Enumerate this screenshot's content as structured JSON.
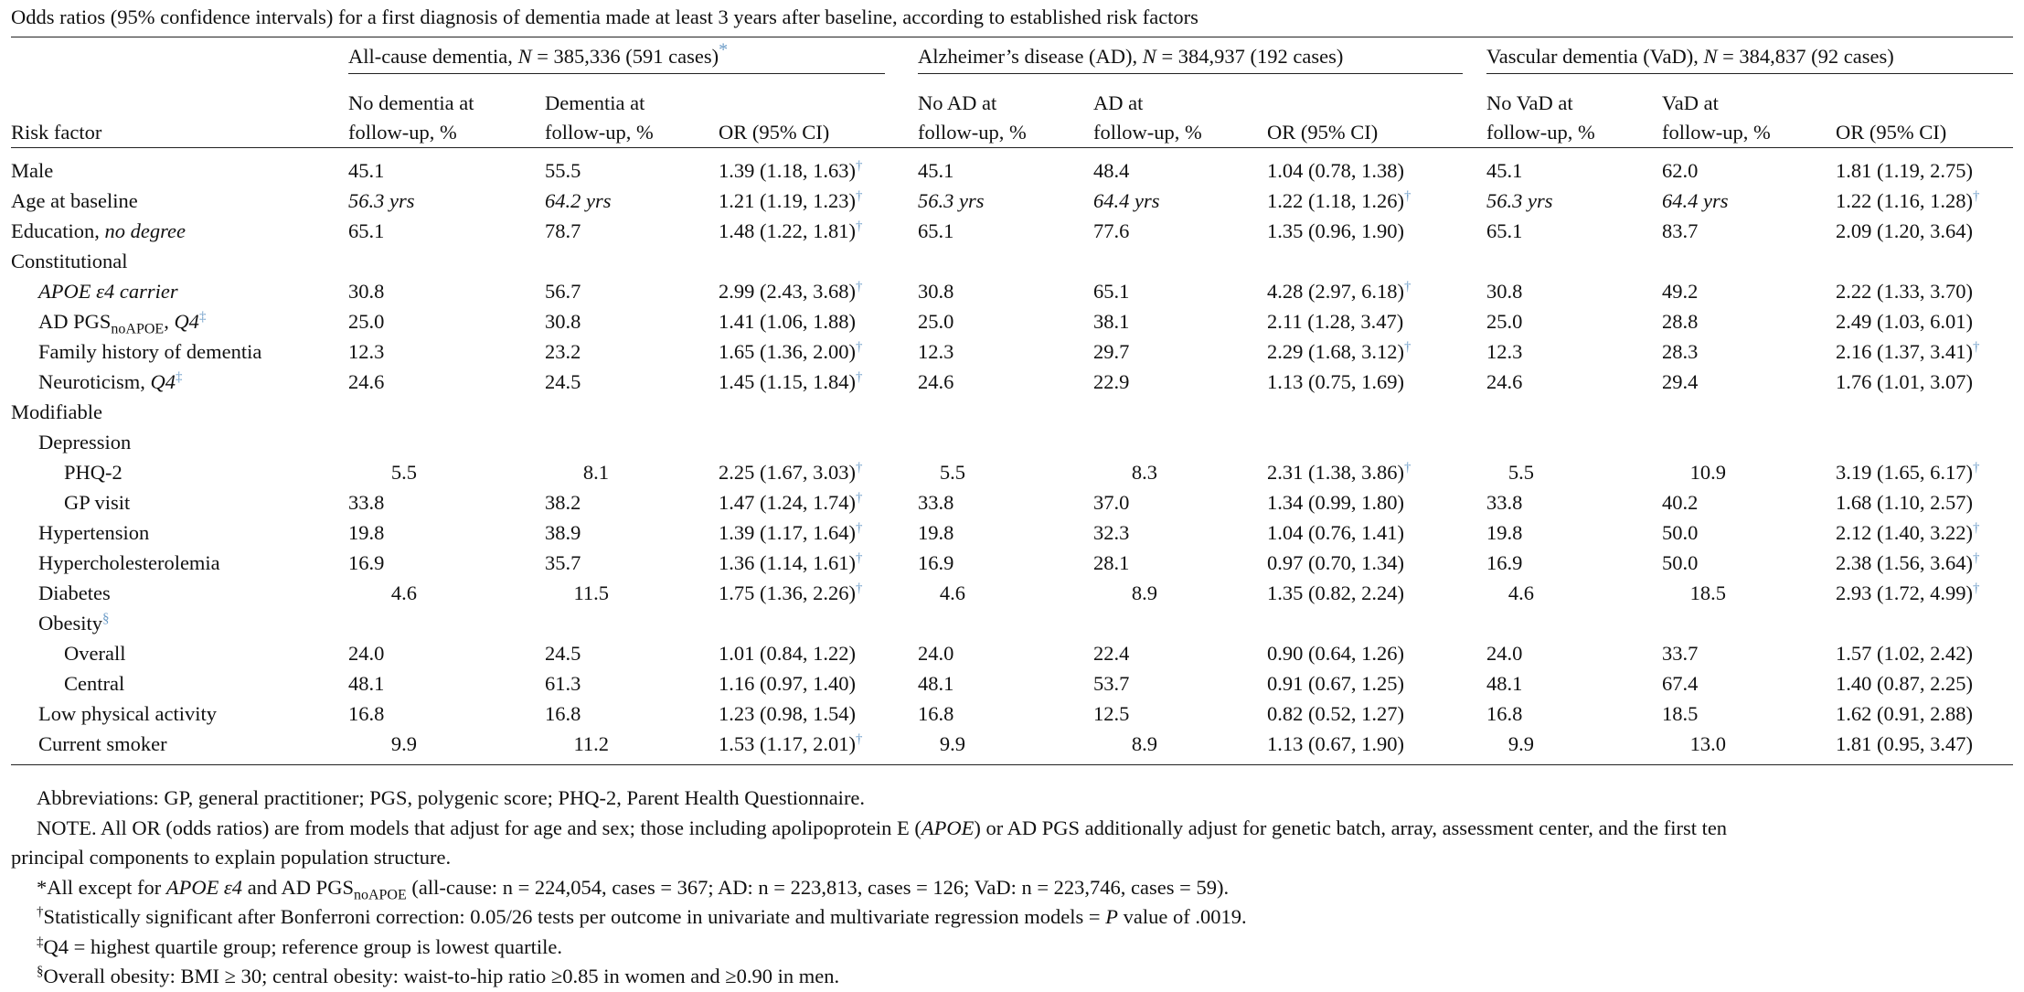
{
  "caption": "Odds ratios (95% confidence intervals) for a first diagnosis of dementia made at least 3 years after baseline, according to established risk factors",
  "groups": [
    {
      "pre": "All-cause dementia, ",
      "n_italic": "N",
      "post": " = 385,336 (591 cases)",
      "mark": "*"
    },
    {
      "pre": "Alzheimer’s disease (AD), ",
      "n_italic": "N",
      "post": " = 384,937 (192 cases)",
      "mark": ""
    },
    {
      "pre": "Vascular dementia (VaD), ",
      "n_italic": "N",
      "post": " = 384,837 (92 cases)",
      "mark": ""
    }
  ],
  "header": {
    "risk_factor": "Risk factor",
    "allcause": {
      "col1": [
        "No dementia at",
        "follow-up, %"
      ],
      "col2": [
        "Dementia at",
        "follow-up, %"
      ],
      "col3": "OR (95% CI)"
    },
    "ad": {
      "col1": [
        "No AD at",
        "follow-up, %"
      ],
      "col2": [
        "AD at",
        "follow-up, %"
      ],
      "col3": "OR (95% CI)"
    },
    "vad": {
      "col1": [
        "No VaD at",
        "follow-up, %"
      ],
      "col2": [
        "VaD at",
        "follow-up, %"
      ],
      "col3": "OR (95% CI)"
    }
  },
  "rows": [
    {
      "label": "Male",
      "indent": 0,
      "vals": [
        "45.1",
        "55.5",
        "1.39 (1.18, 1.63)",
        "45.1",
        "48.4",
        "1.04 (0.78, 1.38)",
        "45.1",
        "62.0",
        "1.81 (1.19, 2.75)"
      ],
      "sig": [
        true,
        false,
        false
      ]
    },
    {
      "label": "Age at baseline",
      "indent": 0,
      "italic_vals": true,
      "vals": [
        "56.3 yrs",
        "64.2 yrs",
        "1.21 (1.19, 1.23)",
        "56.3 yrs",
        "64.4 yrs",
        "1.22 (1.18, 1.26)",
        "56.3 yrs",
        "64.4 yrs",
        "1.22 (1.16, 1.28)"
      ],
      "sig": [
        true,
        true,
        true
      ]
    },
    {
      "label": "Education, ",
      "label_italic": "no degree",
      "indent": 0,
      "vals": [
        "65.1",
        "78.7",
        "1.48 (1.22, 1.81)",
        "65.1",
        "77.6",
        "1.35 (0.96, 1.90)",
        "65.1",
        "83.7",
        "2.09 (1.20, 3.64)"
      ],
      "sig": [
        true,
        false,
        false
      ]
    },
    {
      "label": "Constitutional",
      "indent": 0,
      "section": true
    },
    {
      "label": "APOE ε4 carrier",
      "label_all_italic": true,
      "indent": 1,
      "vals": [
        "30.8",
        "56.7",
        "2.99 (2.43, 3.68)",
        "30.8",
        "65.1",
        "4.28 (2.97, 6.18)",
        "30.8",
        "49.2",
        "2.22 (1.33, 3.70)"
      ],
      "sig": [
        true,
        true,
        false
      ]
    },
    {
      "label": "AD PGS",
      "label_sub": "noAPOE",
      "label_tail": ", ",
      "label_tail_italic": "Q4",
      "label_mark": "‡",
      "indent": 1,
      "vals": [
        "25.0",
        "30.8",
        "1.41 (1.06, 1.88)",
        "25.0",
        "38.1",
        "2.11 (1.28, 3.47)",
        "25.0",
        "28.8",
        "2.49 (1.03, 6.01)"
      ],
      "sig": [
        false,
        false,
        false
      ]
    },
    {
      "label": "Family history of dementia",
      "indent": 1,
      "vals": [
        "12.3",
        "23.2",
        "1.65 (1.36, 2.00)",
        "12.3",
        "29.7",
        "2.29 (1.68, 3.12)",
        "12.3",
        "28.3",
        "2.16 (1.37, 3.41)"
      ],
      "sig": [
        true,
        true,
        true
      ]
    },
    {
      "label": "Neuroticism, ",
      "label_italic": "Q4",
      "label_mark": "‡",
      "indent": 1,
      "vals": [
        "24.6",
        "24.5",
        "1.45 (1.15, 1.84)",
        "24.6",
        "22.9",
        "1.13 (0.75, 1.69)",
        "24.6",
        "29.4",
        "1.76 (1.01, 3.07)"
      ],
      "sig": [
        true,
        false,
        false
      ]
    },
    {
      "label": "Modifiable",
      "indent": 0,
      "section": true
    },
    {
      "label": "Depression",
      "indent": 1,
      "section": true
    },
    {
      "label": "PHQ-2",
      "indent": 2,
      "right_nums": true,
      "vals": [
        "5.5",
        "8.1",
        "2.25 (1.67, 3.03)",
        "5.5",
        "8.3",
        "2.31 (1.38, 3.86)",
        "5.5",
        "10.9",
        "3.19 (1.65, 6.17)"
      ],
      "sig": [
        true,
        true,
        true
      ]
    },
    {
      "label": "GP visit",
      "indent": 2,
      "vals": [
        "33.8",
        "38.2",
        "1.47 (1.24, 1.74)",
        "33.8",
        "37.0",
        "1.34 (0.99, 1.80)",
        "33.8",
        "40.2",
        "1.68 (1.10, 2.57)"
      ],
      "sig": [
        true,
        false,
        false
      ]
    },
    {
      "label": "Hypertension",
      "indent": 1,
      "vals": [
        "19.8",
        "38.9",
        "1.39 (1.17, 1.64)",
        "19.8",
        "32.3",
        "1.04 (0.76, 1.41)",
        "19.8",
        "50.0",
        "2.12 (1.40, 3.22)"
      ],
      "sig": [
        true,
        false,
        true
      ]
    },
    {
      "label": "Hypercholesterolemia",
      "indent": 1,
      "vals": [
        "16.9",
        "35.7",
        "1.36 (1.14, 1.61)",
        "16.9",
        "28.1",
        "0.97 (0.70, 1.34)",
        "16.9",
        "50.0",
        "2.38 (1.56, 3.64)"
      ],
      "sig": [
        true,
        false,
        true
      ]
    },
    {
      "label": "Diabetes",
      "indent": 1,
      "right_nums": true,
      "vals": [
        "4.6",
        "11.5",
        "1.75 (1.36, 2.26)",
        "4.6",
        "8.9",
        "1.35 (0.82, 2.24)",
        "4.6",
        "18.5",
        "2.93 (1.72, 4.99)"
      ],
      "sig": [
        true,
        false,
        true
      ]
    },
    {
      "label": "Obesity",
      "label_mark": "§",
      "indent": 1,
      "section": true
    },
    {
      "label": "Overall",
      "indent": 2,
      "vals": [
        "24.0",
        "24.5",
        "1.01 (0.84, 1.22)",
        "24.0",
        "22.4",
        "0.90 (0.64, 1.26)",
        "24.0",
        "33.7",
        "1.57 (1.02, 2.42)"
      ],
      "sig": [
        false,
        false,
        false
      ]
    },
    {
      "label": "Central",
      "indent": 2,
      "vals": [
        "48.1",
        "61.3",
        "1.16 (0.97, 1.40)",
        "48.1",
        "53.7",
        "0.91 (0.67, 1.25)",
        "48.1",
        "67.4",
        "1.40 (0.87, 2.25)"
      ],
      "sig": [
        false,
        false,
        false
      ]
    },
    {
      "label": "Low physical activity",
      "indent": 1,
      "vals": [
        "16.8",
        "16.8",
        "1.23 (0.98, 1.54)",
        "16.8",
        "12.5",
        "0.82 (0.52, 1.27)",
        "16.8",
        "18.5",
        "1.62 (0.91, 2.88)"
      ],
      "sig": [
        false,
        false,
        false
      ]
    },
    {
      "label": "Current smoker",
      "indent": 1,
      "right_nums": true,
      "vals": [
        "9.9",
        "11.2",
        "1.53 (1.17, 2.01)",
        "9.9",
        "8.9",
        "1.13 (0.67, 1.90)",
        "9.9",
        "13.0",
        "1.81 (0.95, 3.47)"
      ],
      "sig": [
        true,
        false,
        false
      ]
    }
  ],
  "sig_mark": "†",
  "footnotes": {
    "abbreviations": "Abbreviations: GP, general practitioner; PGS, polygenic score; PHQ-2, Parent Health Questionnaire.",
    "note_a": "NOTE. All OR (odds ratios) are from models that adjust for age and sex; those including apolipoprotein E (",
    "note_apoe": "APOE",
    "note_b": ") or AD PGS additionally adjust for genetic batch, array, assessment center, and the first ten",
    "note_c": "principal components to explain population structure.",
    "star_a": "*All except for ",
    "star_apoe": "APOE ε4",
    "star_b": " and AD PGS",
    "star_sub": "noAPOE",
    "star_c": " (all-cause: n = 224,054, cases = 367; AD: n = 223,813, cases = 126; VaD: n = 223,746, cases = 59).",
    "dagger_mark": "†",
    "dagger_a": "Statistically significant after Bonferroni correction: 0.05/26 tests per outcome in univariate and multivariate regression models = ",
    "dagger_p": "P",
    "dagger_b": " value of .0019.",
    "ddagger_mark": "‡",
    "ddagger": "Q4 = highest quartile group; reference group is lowest quartile.",
    "section_mark": "§",
    "section_text": "Overall obesity: BMI ≥ 30; central obesity: waist-to-hip ratio ≥0.85 in women and ≥0.90 in men."
  }
}
